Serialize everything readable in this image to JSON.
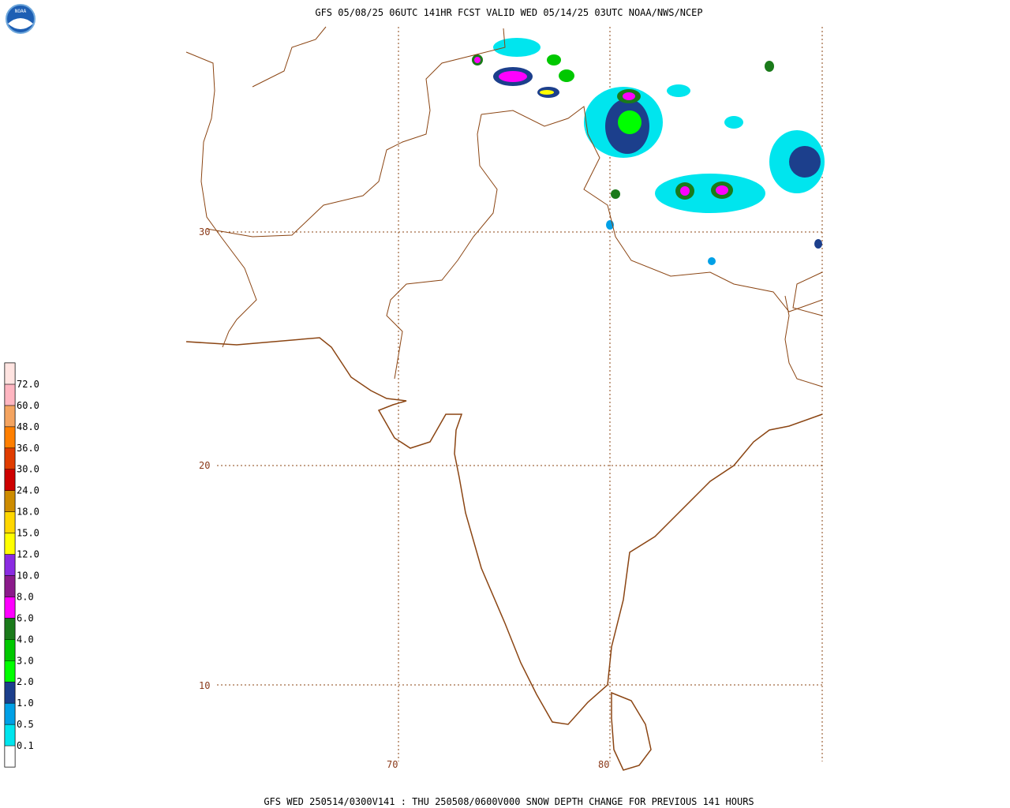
{
  "header": {
    "title": "GFS 05/08/25 06UTC 141HR FCST VALID WED 05/14/25 03UTC NOAA/NWS/NCEP"
  },
  "footer": {
    "caption": "GFS WED 250514/0300V141 : THU 250508/0600V000 SNOW DEPTH CHANGE FOR PREVIOUS 141 HOURS"
  },
  "logo": {
    "text": "NOAA"
  },
  "map": {
    "lat_labels": [
      "30",
      "20",
      "10"
    ],
    "lon_labels": [
      "70",
      "80"
    ]
  },
  "legend": {
    "base_color": "#ffffff",
    "items": [
      {
        "label": "0.1",
        "color": "#00e5ee"
      },
      {
        "label": "0.5",
        "color": "#00a0e6"
      },
      {
        "label": "1.0",
        "color": "#1c3f8c"
      },
      {
        "label": "2.0",
        "color": "#00ff00"
      },
      {
        "label": "3.0",
        "color": "#00c800"
      },
      {
        "label": "4.0",
        "color": "#1a7a1a"
      },
      {
        "label": "6.0",
        "color": "#ff00ff"
      },
      {
        "label": "8.0",
        "color": "#8b1a8b"
      },
      {
        "label": "10.0",
        "color": "#8a2be2"
      },
      {
        "label": "12.0",
        "color": "#ffff00"
      },
      {
        "label": "15.0",
        "color": "#ffd700"
      },
      {
        "label": "18.0",
        "color": "#cd8c00"
      },
      {
        "label": "24.0",
        "color": "#cd0000"
      },
      {
        "label": "30.0",
        "color": "#e03c00"
      },
      {
        "label": "36.0",
        "color": "#ff7f00"
      },
      {
        "label": "48.0",
        "color": "#f4a460"
      },
      {
        "label": "60.0",
        "color": "#ffb6c1"
      },
      {
        "label": "72.0",
        "color": "#ffe4e1"
      }
    ]
  }
}
